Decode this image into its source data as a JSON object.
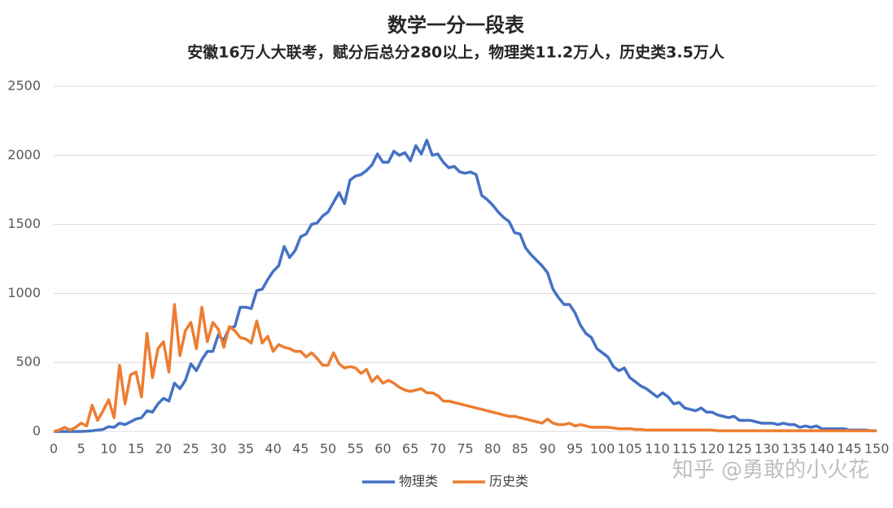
{
  "chart_data": {
    "type": "line",
    "title": "数学一分一段表",
    "subtitle": "安徽16万人大联考，赋分后总分280以上，物理类11.2万人，历史类3.5万人",
    "watermark": "知乎 @勇敢的小火花",
    "x": [
      0,
      1,
      2,
      3,
      4,
      5,
      6,
      7,
      8,
      9,
      10,
      11,
      12,
      13,
      14,
      15,
      16,
      17,
      18,
      19,
      20,
      21,
      22,
      23,
      24,
      25,
      26,
      27,
      28,
      29,
      30,
      31,
      32,
      33,
      34,
      35,
      36,
      37,
      38,
      39,
      40,
      41,
      42,
      43,
      44,
      45,
      46,
      47,
      48,
      49,
      50,
      51,
      52,
      53,
      54,
      55,
      56,
      57,
      58,
      59,
      60,
      61,
      62,
      63,
      64,
      65,
      66,
      67,
      68,
      69,
      70,
      71,
      72,
      73,
      74,
      75,
      76,
      77,
      78,
      79,
      80,
      81,
      82,
      83,
      84,
      85,
      86,
      87,
      88,
      89,
      90,
      91,
      92,
      93,
      94,
      95,
      96,
      97,
      98,
      99,
      100,
      101,
      102,
      103,
      104,
      105,
      106,
      107,
      108,
      109,
      110,
      111,
      112,
      113,
      114,
      115,
      116,
      117,
      118,
      119,
      120,
      121,
      122,
      123,
      124,
      125,
      126,
      127,
      128,
      129,
      130,
      131,
      132,
      133,
      134,
      135,
      136,
      137,
      138,
      139,
      140,
      141,
      142,
      143,
      144,
      145,
      146,
      147,
      148,
      149,
      150
    ],
    "series": [
      {
        "name": "物理类",
        "color": "#4472c4",
        "values": [
          0,
          0,
          0,
          0,
          0,
          0,
          2,
          5,
          10,
          15,
          35,
          30,
          60,
          50,
          70,
          90,
          100,
          150,
          140,
          200,
          240,
          220,
          350,
          310,
          370,
          490,
          440,
          520,
          580,
          580,
          700,
          660,
          750,
          760,
          900,
          900,
          890,
          1020,
          1030,
          1100,
          1160,
          1200,
          1340,
          1260,
          1310,
          1410,
          1430,
          1500,
          1510,
          1560,
          1590,
          1660,
          1730,
          1650,
          1820,
          1850,
          1860,
          1890,
          1930,
          2010,
          1950,
          1950,
          2030,
          2000,
          2020,
          1960,
          2070,
          2010,
          2110,
          2000,
          2010,
          1950,
          1910,
          1920,
          1880,
          1870,
          1880,
          1860,
          1710,
          1680,
          1640,
          1590,
          1550,
          1520,
          1440,
          1430,
          1330,
          1280,
          1240,
          1200,
          1150,
          1030,
          970,
          920,
          920,
          860,
          770,
          710,
          680,
          600,
          570,
          540,
          470,
          440,
          460,
          390,
          360,
          330,
          310,
          280,
          250,
          280,
          250,
          200,
          210,
          170,
          160,
          150,
          170,
          140,
          140,
          120,
          110,
          100,
          110,
          80,
          80,
          80,
          70,
          60,
          60,
          60,
          50,
          60,
          50,
          50,
          30,
          40,
          30,
          40,
          20,
          20,
          20,
          20,
          20,
          10,
          10,
          10,
          10,
          5,
          5
        ]
      },
      {
        "name": "历史类",
        "color": "#ed7d31",
        "values": [
          0,
          10,
          30,
          10,
          30,
          60,
          40,
          190,
          80,
          150,
          230,
          100,
          480,
          200,
          410,
          430,
          250,
          710,
          390,
          600,
          650,
          430,
          920,
          550,
          730,
          790,
          600,
          900,
          650,
          790,
          740,
          610,
          760,
          730,
          680,
          670,
          640,
          800,
          640,
          690,
          580,
          630,
          610,
          600,
          580,
          580,
          540,
          570,
          530,
          480,
          480,
          570,
          490,
          460,
          470,
          460,
          420,
          450,
          360,
          400,
          350,
          370,
          350,
          320,
          300,
          290,
          300,
          310,
          280,
          280,
          260,
          220,
          220,
          210,
          200,
          190,
          180,
          170,
          160,
          150,
          140,
          130,
          120,
          110,
          110,
          100,
          90,
          80,
          70,
          60,
          90,
          60,
          50,
          50,
          60,
          40,
          50,
          40,
          30,
          30,
          30,
          30,
          25,
          20,
          20,
          20,
          15,
          15,
          10,
          10,
          10,
          10,
          10,
          10,
          10,
          10,
          10,
          10,
          10,
          10,
          10,
          5,
          5,
          5,
          5,
          5,
          5,
          5,
          5,
          5,
          5,
          5,
          5,
          5,
          5,
          5,
          5,
          5,
          5,
          5,
          5,
          5,
          5,
          5,
          5,
          5,
          5,
          5,
          5,
          5,
          5
        ]
      }
    ],
    "xlim": [
      0,
      150
    ],
    "xticks": [
      0,
      5,
      10,
      15,
      20,
      25,
      30,
      35,
      40,
      45,
      50,
      55,
      60,
      65,
      70,
      75,
      80,
      85,
      90,
      95,
      100,
      105,
      110,
      115,
      120,
      125,
      130,
      135,
      140,
      145,
      150
    ],
    "ylim": [
      0,
      2500
    ],
    "yticks": [
      0,
      500,
      1000,
      1500,
      2000,
      2500
    ],
    "grid": true,
    "legend": "bottom"
  }
}
